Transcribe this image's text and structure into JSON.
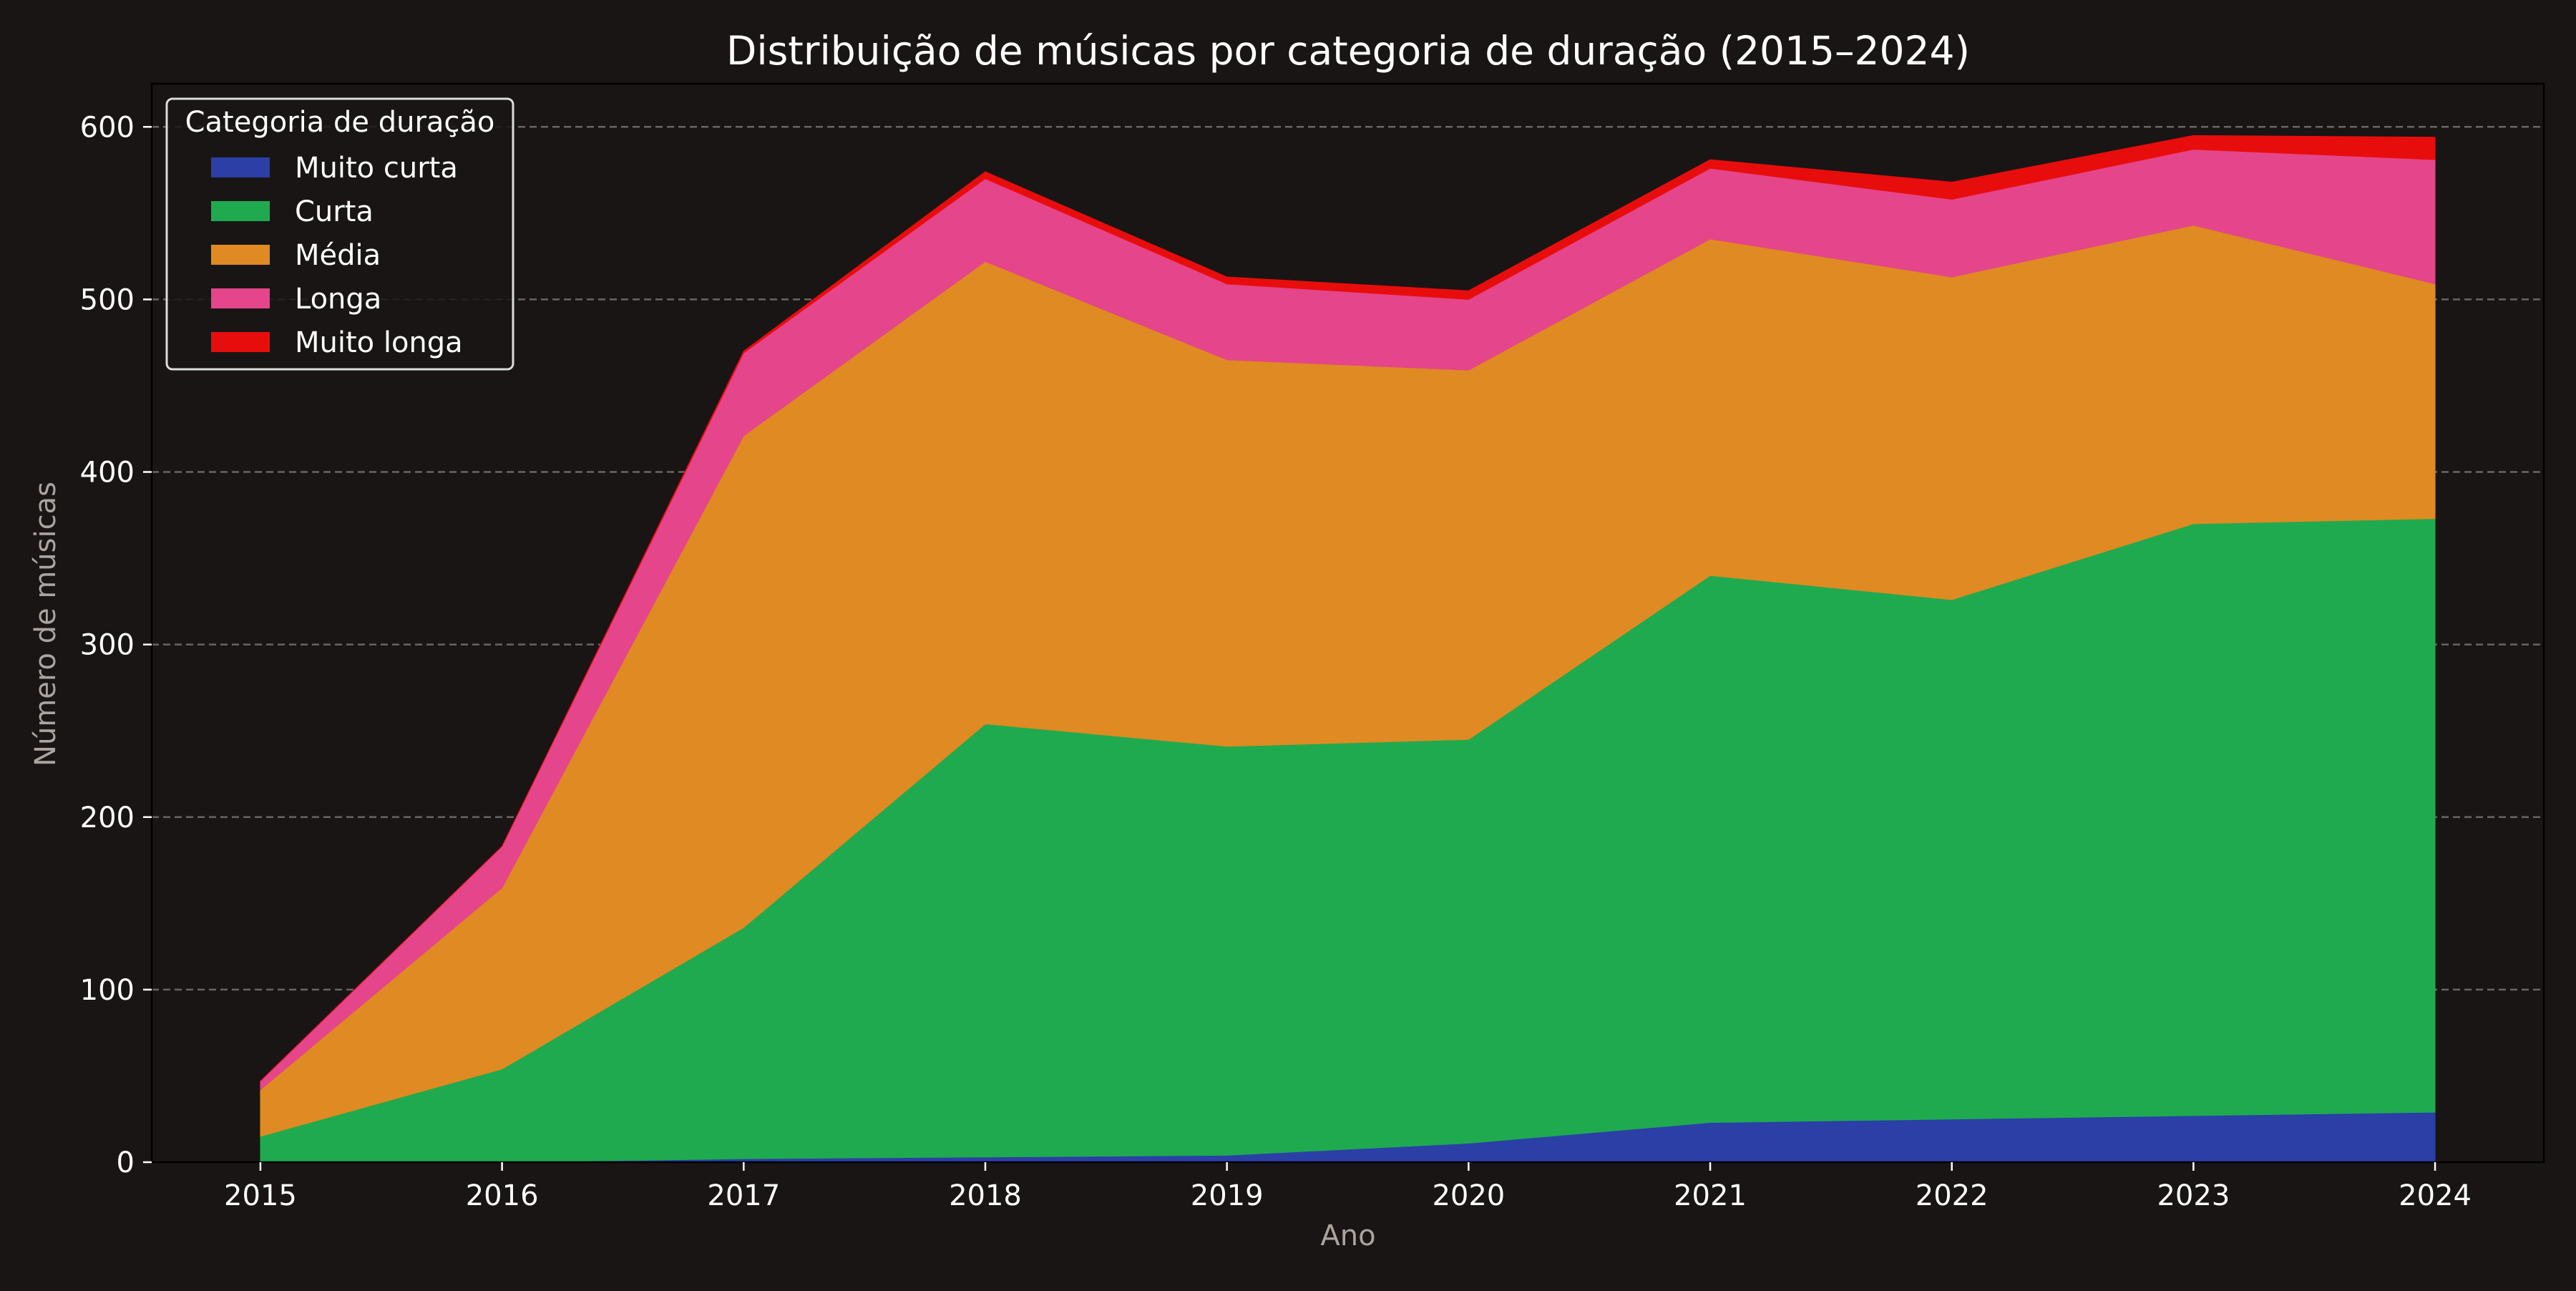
{
  "chart_data": {
    "type": "area",
    "stacked": true,
    "title": "Distribuição de músicas por categoria de duração (2015–2024)",
    "xlabel": "Ano",
    "ylabel": "Número de músicas",
    "x": [
      2015,
      2016,
      2017,
      2018,
      2019,
      2020,
      2021,
      2022,
      2023,
      2024
    ],
    "xticks": [
      "2015",
      "2016",
      "2017",
      "2018",
      "2019",
      "2020",
      "2021",
      "2022",
      "2023",
      "2024"
    ],
    "yticks": [
      "0",
      "100",
      "200",
      "300",
      "400",
      "500",
      "600"
    ],
    "ylim": [
      0,
      625
    ],
    "xlim": [
      2014.55,
      2024.45
    ],
    "grid": "y-dashed",
    "legend": {
      "title": "Categoria de duração",
      "placement": "top-left"
    },
    "series": [
      {
        "name": "Muito curta",
        "color": "#2b3fa6",
        "values": [
          0,
          0,
          2,
          3,
          4,
          11,
          23,
          25,
          27,
          29
        ]
      },
      {
        "name": "Curta",
        "color": "#1faa50",
        "values": [
          15,
          54,
          134,
          251,
          237,
          234,
          317,
          301,
          343,
          344
        ]
      },
      {
        "name": "Média",
        "color": "#df8a22",
        "values": [
          27,
          105,
          285,
          268,
          224,
          214,
          195,
          187,
          173,
          136
        ]
      },
      {
        "name": "Longa",
        "color": "#e5458a",
        "values": [
          5,
          24,
          48,
          48,
          44,
          41,
          41,
          45,
          44,
          72
        ]
      },
      {
        "name": "Muito longa",
        "color": "#e80d0d",
        "values": [
          0,
          0,
          1,
          4,
          4,
          5,
          5,
          10,
          8,
          13
        ]
      }
    ]
  }
}
